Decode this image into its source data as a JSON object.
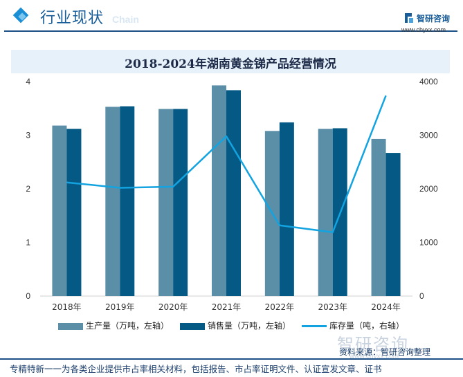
{
  "header": {
    "title": "行业现状",
    "watermark_en": "Chain",
    "logo_name": "智研咨询",
    "logo_url": "www.chyxx.com"
  },
  "chart_data": {
    "type": "bar",
    "title": "2018-2024年湖南黄金锑产品经营情况",
    "categories": [
      "2018年",
      "2019年",
      "2020年",
      "2021年",
      "2022年",
      "2023年",
      "2024年"
    ],
    "series": [
      {
        "name": "生产量（万吨，左轴）",
        "kind": "bar",
        "axis": "left",
        "color": "#5b8fa8",
        "values": [
          3.18,
          3.53,
          3.49,
          3.93,
          3.08,
          3.12,
          2.93
        ]
      },
      {
        "name": "销售量（万吨，左轴）",
        "kind": "bar",
        "axis": "left",
        "color": "#055a85",
        "values": [
          3.12,
          3.54,
          3.49,
          3.84,
          3.24,
          3.13,
          2.67
        ]
      },
      {
        "name": "库存量（吨，右轴）",
        "kind": "line",
        "axis": "right",
        "color": "#12a3e0",
        "values": [
          2120,
          2020,
          2040,
          2980,
          1320,
          1190,
          3740
        ]
      }
    ],
    "y_left": {
      "min": 0,
      "max": 4,
      "ticks": [
        0,
        1,
        2,
        3,
        4
      ]
    },
    "y_right": {
      "min": 0,
      "max": 4000,
      "ticks": [
        0,
        1000,
        2000,
        3000,
        4000
      ]
    },
    "grid": false,
    "legend_position": "bottom"
  },
  "watermark": {
    "logo": "智研咨询",
    "url": "www.chyxx.com"
  },
  "source": "资料来源：智研咨询整理",
  "footer": "专精特新一一为各类企业提供市占率相关材料，包括报告、市占率证明文件、认证宣发文章、证书"
}
